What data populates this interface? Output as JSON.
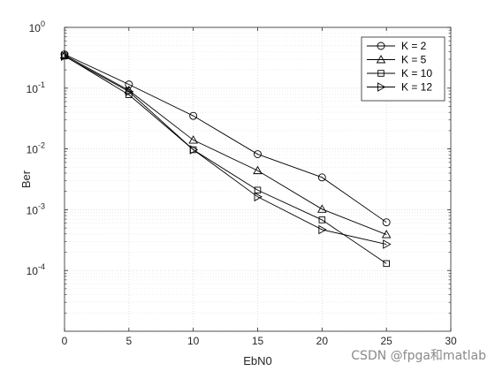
{
  "chart_data": {
    "type": "line",
    "xlabel": "EbN0",
    "ylabel": "Ber",
    "xlim": [
      0,
      30
    ],
    "ylim": [
      1e-05,
      1
    ],
    "yscale": "log",
    "xticks": [
      0,
      5,
      10,
      15,
      20,
      25,
      30
    ],
    "yticks_exponents": [
      0,
      -1,
      -2,
      -3,
      -4
    ],
    "ytick_base": "10",
    "grid": "on (major and minor, dotted)",
    "legend_location": "top-right",
    "x": [
      0,
      5,
      10,
      15,
      20,
      25
    ],
    "series": [
      {
        "name": "K = 2",
        "marker": "circle",
        "values": [
          0.36,
          0.115,
          0.035,
          0.0082,
          0.0034,
          0.00062
        ]
      },
      {
        "name": "K = 5",
        "marker": "triangle-up",
        "values": [
          0.35,
          0.092,
          0.014,
          0.0044,
          0.00102,
          0.00039
        ]
      },
      {
        "name": "K = 10",
        "marker": "square",
        "values": [
          0.34,
          0.078,
          0.0097,
          0.0021,
          0.00068,
          0.00013
        ]
      },
      {
        "name": "K = 12",
        "marker": "triangle-right",
        "values": [
          0.335,
          0.088,
          0.0097,
          0.00163,
          0.00047,
          0.00027
        ]
      }
    ],
    "colors": {
      "line": "#000000",
      "grid": "#d9d9d9",
      "axis": "#262626"
    }
  },
  "watermark": "CSDN @fpga和matlab"
}
